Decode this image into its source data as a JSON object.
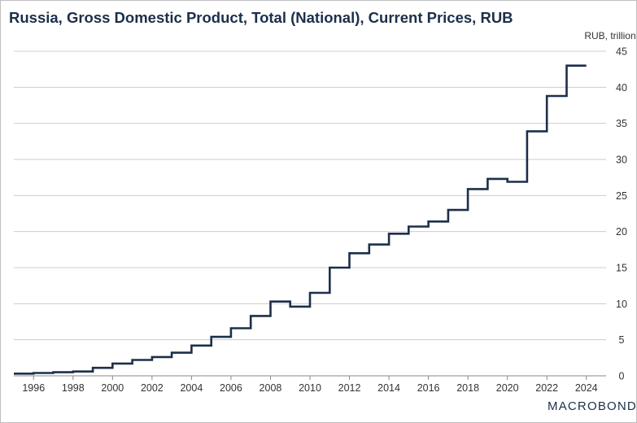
{
  "chart_data": {
    "type": "line",
    "title": "Russia, Gross Domestic Product, Total (National), Current Prices, RUB",
    "ylabel": "RUB, trillion",
    "xlabel": "",
    "x_tick_labels": [
      "1996",
      "1998",
      "2000",
      "2002",
      "2004",
      "2006",
      "2008",
      "2010",
      "2012",
      "2014",
      "2016",
      "2018",
      "2020",
      "2022",
      "2024"
    ],
    "y_tick_labels": [
      "0",
      "5",
      "10",
      "15",
      "20",
      "25",
      "30",
      "35",
      "40",
      "45"
    ],
    "xlim": [
      1995,
      2025
    ],
    "ylim": [
      0,
      45
    ],
    "grid": true,
    "y_axis_side": "right",
    "step": true,
    "series": [
      {
        "color": "#1c2f4a",
        "x": [
          1995,
          1996,
          1997,
          1998,
          1999,
          2000,
          2001,
          2002,
          2003,
          2004,
          2005,
          2006,
          2007,
          2008,
          2009,
          2010,
          2011,
          2012,
          2013,
          2014,
          2015,
          2016,
          2017,
          2018,
          2019,
          2020,
          2021,
          2022,
          2023
        ],
        "values": [
          0.3,
          0.4,
          0.5,
          0.6,
          1.1,
          1.7,
          2.2,
          2.6,
          3.2,
          4.2,
          5.4,
          6.6,
          8.3,
          10.3,
          9.6,
          11.5,
          15.0,
          17.0,
          18.2,
          19.7,
          20.7,
          21.4,
          23.0,
          25.9,
          27.3,
          26.9,
          33.9,
          38.8,
          43.0
        ]
      }
    ]
  },
  "branding": {
    "logo_text": "MACROBOND"
  },
  "colors": {
    "line": "#1c2f4a",
    "grid": "#cccccc",
    "axis": "#888888",
    "title": "#1c2f4a"
  }
}
